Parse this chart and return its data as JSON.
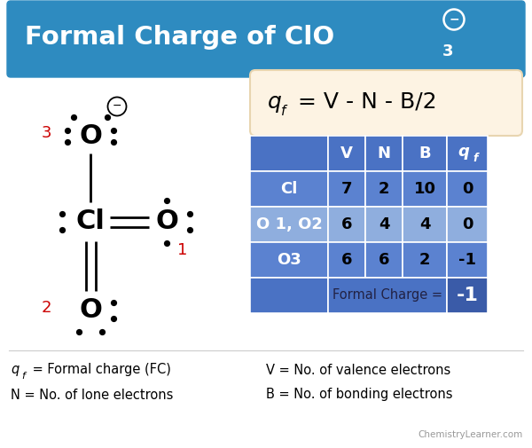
{
  "title_bg_color": "#2E8BC0",
  "title_text_color": "#FFFFFF",
  "formula_box_color": "#FDF3E3",
  "formula_box_edge": "#E8D5B0",
  "table_header_color": "#4A72C4",
  "table_row1_color": "#5B82D0",
  "table_row2_color": "#8FAEDE",
  "table_row3_color": "#5B82D0",
  "table_footer_left_color": "#4A72C4",
  "table_footer_mid_color": "#4A72C4",
  "table_highlight_color": "#3A5BA8",
  "bg_color": "#FFFFFF",
  "red_color": "#CC0000",
  "black": "#000000",
  "white": "#FFFFFF",
  "gray_line": "#CCCCCC",
  "dark_text": "#222244",
  "watermark_color": "#999999",
  "watermark": "ChemistryLearner.com",
  "table_headers": [
    "",
    "V",
    "N",
    "B",
    "qf"
  ],
  "table_rows": [
    [
      "Cl",
      "7",
      "2",
      "10",
      "0"
    ],
    [
      "O 1, O2",
      "6",
      "4",
      "4",
      "0"
    ],
    [
      "O3",
      "6",
      "6",
      "2",
      "-1"
    ]
  ]
}
